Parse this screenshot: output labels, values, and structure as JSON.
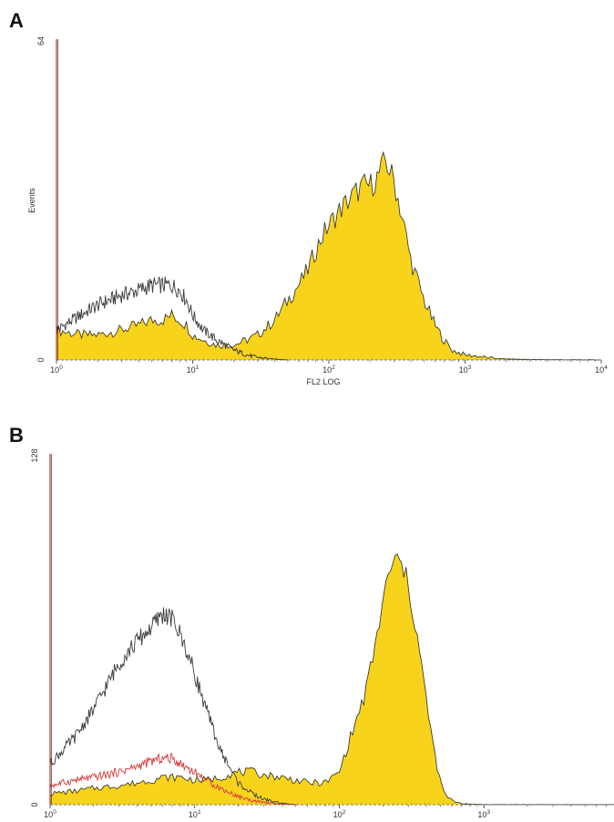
{
  "chart_data": [
    {
      "panel_label": "A",
      "type": "area",
      "xlabel": "FL2 LOG",
      "ylabel": "Events",
      "x_scale": "log",
      "xlim": [
        1,
        10000
      ],
      "ylim": [
        0,
        64
      ],
      "x_ticks": [
        {
          "base": "10",
          "exp": "0",
          "value": 1
        },
        {
          "base": "10",
          "exp": "1",
          "value": 10
        },
        {
          "base": "10",
          "exp": "2",
          "value": 100
        },
        {
          "base": "10",
          "exp": "3",
          "value": 1000
        },
        {
          "base": "10",
          "exp": "4",
          "value": 10000
        }
      ],
      "y_ticks": [
        {
          "label": "0",
          "value": 0
        },
        {
          "label": "64",
          "value": 64
        }
      ],
      "series": [
        {
          "style": "filled",
          "color": "#f7d31c",
          "x": [
            1,
            1.5,
            2,
            3,
            4,
            5,
            6,
            7,
            8,
            9,
            10,
            12,
            15,
            20,
            25,
            30,
            40,
            50,
            60,
            70,
            80,
            90,
            100,
            120,
            150,
            180,
            200,
            220,
            240,
            260,
            280,
            300,
            350,
            400,
            500,
            600,
            700,
            800,
            1000,
            1200,
            1500,
            2000,
            3000,
            5000,
            10000
          ],
          "y": [
            6,
            5,
            5,
            6,
            7,
            8,
            8,
            9,
            8,
            7,
            5,
            4,
            3,
            3,
            4,
            5,
            8,
            12,
            15,
            18,
            22,
            25,
            27,
            30,
            33,
            35,
            35,
            36,
            38,
            40,
            38,
            36,
            28,
            20,
            12,
            7,
            4,
            2,
            1,
            0.8,
            0.4,
            0.2,
            0.1,
            0.05,
            0
          ]
        },
        {
          "style": "outline",
          "color": "#3a3a3a",
          "x": [
            1,
            1.5,
            2,
            3,
            4,
            5,
            6,
            7,
            8,
            9,
            10,
            12,
            15,
            20,
            25,
            30,
            40,
            50
          ],
          "y": [
            6,
            9,
            11,
            13,
            14,
            15,
            15,
            15,
            14,
            12,
            9,
            6,
            4,
            2,
            1,
            0.5,
            0.2,
            0
          ]
        }
      ]
    },
    {
      "panel_label": "B",
      "type": "area",
      "xlabel": "",
      "ylabel": "",
      "x_scale": "log",
      "xlim": [
        1,
        10000
      ],
      "ylim": [
        0,
        128
      ],
      "x_ticks": [
        {
          "base": "10",
          "exp": "0",
          "value": 1
        },
        {
          "base": "10",
          "exp": "1",
          "value": 10
        },
        {
          "base": "10",
          "exp": "2",
          "value": 100
        },
        {
          "base": "10",
          "exp": "3",
          "value": 1000
        }
      ],
      "y_ticks": [
        {
          "label": "0",
          "value": 0
        },
        {
          "label": "128",
          "value": 128
        }
      ],
      "series": [
        {
          "style": "filled",
          "color": "#f7d31c",
          "x": [
            1,
            1.5,
            2,
            3,
            4,
            5,
            6,
            7,
            8,
            10,
            12,
            15,
            20,
            25,
            30,
            40,
            50,
            60,
            70,
            80,
            100,
            120,
            150,
            180,
            200,
            230,
            250,
            280,
            300,
            350,
            400,
            450,
            500,
            550,
            600,
            700,
            800,
            1000,
            10000
          ],
          "y": [
            4,
            5,
            6,
            7,
            8,
            9,
            10,
            10,
            10,
            9,
            9,
            10,
            12,
            12,
            11,
            10,
            9,
            8,
            8,
            8,
            12,
            25,
            40,
            60,
            75,
            88,
            90,
            86,
            80,
            60,
            38,
            20,
            8,
            3,
            1.5,
            0.5,
            0.2,
            0.05,
            0
          ]
        },
        {
          "style": "outline",
          "color": "#3a3a3a",
          "x": [
            1,
            1.5,
            2,
            3,
            4,
            5,
            6,
            7,
            8,
            9,
            10,
            12,
            15,
            20,
            25,
            30,
            40,
            50
          ],
          "y": [
            15,
            25,
            35,
            52,
            60,
            65,
            70,
            68,
            62,
            55,
            48,
            35,
            20,
            8,
            4,
            2,
            0.5,
            0
          ]
        },
        {
          "style": "outline",
          "color": "#d43a3a",
          "x": [
            1,
            1.5,
            2,
            3,
            4,
            5,
            6,
            7,
            8,
            10,
            12,
            15,
            20,
            25,
            30,
            40,
            50
          ],
          "y": [
            7,
            9,
            10,
            12,
            14,
            16,
            17,
            17,
            15,
            12,
            9,
            6,
            3,
            1.5,
            0.8,
            0.2,
            0
          ]
        }
      ]
    }
  ]
}
